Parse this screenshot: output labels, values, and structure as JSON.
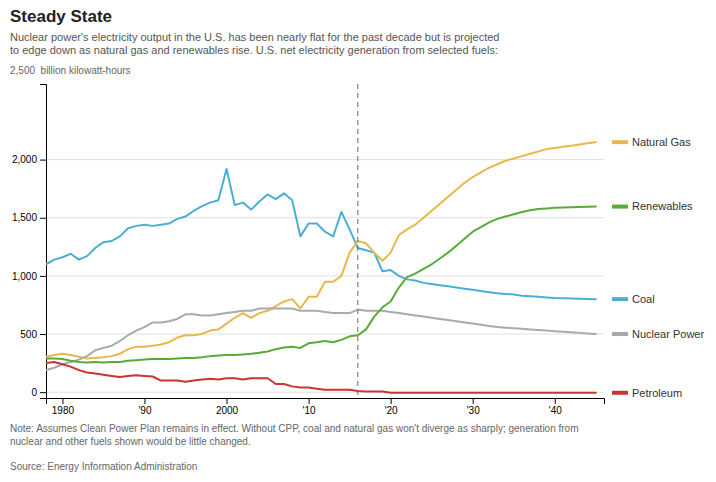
{
  "chart_data": {
    "type": "line",
    "title": "Steady State",
    "subtitle": "Nuclear power's electricity output in the U.S. has been nearly flat for the past decade but is projected\nto edge down as natural gas and renewables rise. U.S. net electricity generation from selected fuels:",
    "ylabel": "2,500  billion kilowatt-hours",
    "note": "Note: Assumes Clean Power Plan remains in effect. Without CPP, coal and natural gas won't diverge as sharply; generation from\nnuclear and other fuels shown would be little changed.",
    "source": "Source: Energy Information Administration",
    "x": [
      1978,
      1979,
      1980,
      1981,
      1982,
      1983,
      1984,
      1985,
      1986,
      1987,
      1988,
      1989,
      1990,
      1991,
      1992,
      1993,
      1994,
      1995,
      1996,
      1997,
      1998,
      1999,
      2000,
      2001,
      2002,
      2003,
      2004,
      2005,
      2006,
      2007,
      2008,
      2009,
      2010,
      2011,
      2012,
      2013,
      2014,
      2015,
      2016,
      2017,
      2018,
      2019,
      2020,
      2021,
      2022,
      2023,
      2024,
      2025,
      2026,
      2027,
      2028,
      2029,
      2030,
      2031,
      2032,
      2033,
      2034,
      2035,
      2036,
      2037,
      2038,
      2039,
      2040,
      2041,
      2042,
      2043,
      2044,
      2045
    ],
    "series": [
      {
        "name": "Coal",
        "color": "#4bafd4",
        "values": [
          1100,
          1140,
          1160,
          1190,
          1140,
          1170,
          1240,
          1290,
          1300,
          1340,
          1410,
          1430,
          1440,
          1430,
          1440,
          1450,
          1490,
          1510,
          1560,
          1600,
          1630,
          1650,
          1920,
          1610,
          1630,
          1570,
          1640,
          1700,
          1660,
          1710,
          1650,
          1340,
          1450,
          1450,
          1380,
          1340,
          1550,
          1400,
          1240,
          1220,
          1200,
          1040,
          1050,
          1000,
          970,
          960,
          940,
          930,
          920,
          910,
          900,
          890,
          880,
          870,
          860,
          850,
          845,
          840,
          830,
          825,
          820,
          815,
          810,
          808,
          806,
          804,
          802,
          800
        ]
      },
      {
        "name": "Natural Gas",
        "color": "#e8b84b",
        "values": [
          305,
          320,
          330,
          320,
          305,
          290,
          295,
          300,
          310,
          330,
          370,
          390,
          390,
          400,
          410,
          430,
          470,
          490,
          490,
          500,
          530,
          540,
          590,
          640,
          680,
          640,
          680,
          700,
          740,
          780,
          800,
          720,
          820,
          820,
          950,
          950,
          1000,
          1200,
          1300,
          1280,
          1200,
          1130,
          1200,
          1350,
          1400,
          1440,
          1500,
          1560,
          1620,
          1680,
          1740,
          1800,
          1850,
          1890,
          1930,
          1960,
          1990,
          2010,
          2030,
          2050,
          2070,
          2090,
          2100,
          2110,
          2120,
          2130,
          2140,
          2150
        ]
      },
      {
        "name": "Nuclear Power",
        "color": "#aaaaaa",
        "values": [
          190,
          210,
          240,
          260,
          280,
          310,
          360,
          380,
          400,
          440,
          490,
          530,
          560,
          600,
          600,
          610,
          630,
          670,
          670,
          660,
          660,
          670,
          680,
          690,
          700,
          700,
          720,
          720,
          720,
          720,
          720,
          700,
          700,
          700,
          690,
          680,
          680,
          680,
          710,
          700,
          700,
          700,
          690,
          680,
          670,
          660,
          650,
          640,
          630,
          620,
          610,
          600,
          590,
          580,
          570,
          560,
          555,
          550,
          545,
          540,
          535,
          530,
          525,
          520,
          515,
          510,
          505,
          500
        ]
      },
      {
        "name": "Petroleum",
        "color": "#cc3333",
        "values": [
          250,
          260,
          240,
          220,
          190,
          170,
          160,
          150,
          140,
          130,
          140,
          145,
          140,
          135,
          100,
          100,
          100,
          90,
          100,
          110,
          115,
          110,
          120,
          120,
          110,
          120,
          120,
          120,
          70,
          70,
          50,
          40,
          40,
          30,
          20,
          20,
          20,
          20,
          10,
          5,
          5,
          5,
          -5,
          -5,
          -5,
          -5,
          -5,
          -5,
          -5,
          -5,
          -5,
          -5,
          -5,
          -5,
          -5,
          -5,
          -5,
          -5,
          -5,
          -5,
          -5,
          -5,
          -5,
          -5,
          -5,
          -5,
          -5,
          -5
        ]
      },
      {
        "name": "Renewables",
        "color": "#5aaa3a",
        "values": [
          290,
          290,
          285,
          270,
          260,
          255,
          260,
          255,
          260,
          260,
          270,
          275,
          280,
          285,
          285,
          285,
          290,
          295,
          295,
          300,
          310,
          315,
          320,
          320,
          325,
          330,
          340,
          350,
          370,
          385,
          390,
          380,
          420,
          430,
          440,
          430,
          450,
          480,
          490,
          540,
          650,
          730,
          780,
          900,
          990,
          1020,
          1060,
          1100,
          1150,
          1200,
          1260,
          1320,
          1380,
          1420,
          1460,
          1490,
          1510,
          1530,
          1550,
          1565,
          1575,
          1580,
          1585,
          1588,
          1590,
          1592,
          1594,
          1596
        ]
      }
    ],
    "vlines": [
      2016
    ],
    "xlim": [
      1978,
      2046
    ],
    "xticks": [
      1980,
      {
        "value": 1990,
        "label": "'90"
      },
      2000,
      {
        "value": 2010,
        "label": "'10"
      },
      {
        "value": 2020,
        "label": "'20"
      },
      {
        "value": 2030,
        "label": "'30"
      },
      {
        "value": 2040,
        "label": "'40"
      }
    ],
    "ylim": [
      -50,
      2650
    ],
    "yticks": [
      0,
      500,
      {
        "value": 1000,
        "label": "1,000"
      },
      {
        "value": 1500,
        "label": "1,500"
      },
      {
        "value": 2000,
        "label": "2,000"
      }
    ],
    "grid": true,
    "legend": "right"
  }
}
